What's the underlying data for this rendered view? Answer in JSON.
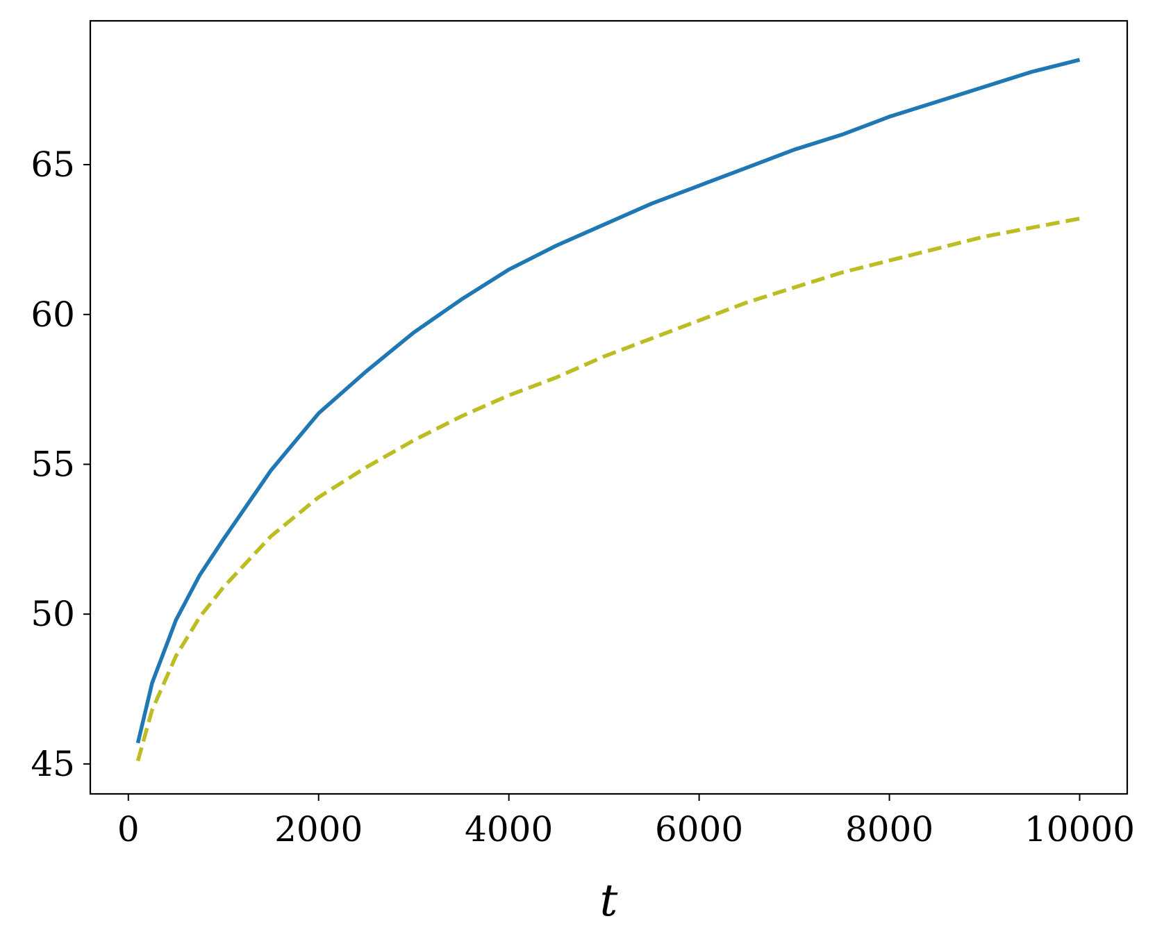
{
  "chart_data": {
    "type": "line",
    "title": "",
    "xlabel": "t",
    "ylabel": "",
    "xlim": [
      -400,
      10500
    ],
    "ylim": [
      44,
      69.8
    ],
    "xticks": [
      0,
      2000,
      4000,
      6000,
      8000,
      10000
    ],
    "xtick_labels": [
      "0",
      "2000",
      "4000",
      "6000",
      "8000",
      "10000"
    ],
    "yticks": [
      45,
      50,
      55,
      60,
      65
    ],
    "ytick_labels": [
      "45",
      "50",
      "55",
      "60",
      "65"
    ],
    "grid": false,
    "legend": "none",
    "x": [
      100,
      250,
      500,
      750,
      1000,
      1500,
      2000,
      2500,
      3000,
      3500,
      4000,
      4500,
      5000,
      5500,
      6000,
      6500,
      7000,
      7500,
      8000,
      8500,
      9000,
      9500,
      10000
    ],
    "series": [
      {
        "style": "solid",
        "color": "#1f77b4",
        "values": [
          45.7,
          47.7,
          49.8,
          51.3,
          52.5,
          54.8,
          56.7,
          58.1,
          59.4,
          60.5,
          61.5,
          62.3,
          63.0,
          63.7,
          64.3,
          64.9,
          65.5,
          66.0,
          66.6,
          67.1,
          67.6,
          68.1,
          68.5
        ]
      },
      {
        "style": "dashed",
        "color": "#bcbd22",
        "values": [
          45.1,
          46.8,
          48.6,
          49.9,
          50.9,
          52.6,
          53.9,
          54.9,
          55.8,
          56.6,
          57.3,
          57.9,
          58.6,
          59.2,
          59.8,
          60.4,
          60.9,
          61.4,
          61.8,
          62.2,
          62.6,
          62.9,
          63.2
        ]
      }
    ]
  }
}
